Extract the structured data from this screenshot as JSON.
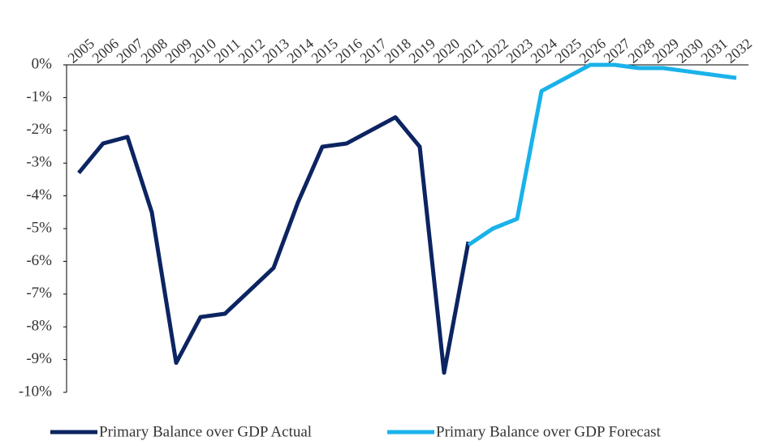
{
  "chart_data": {
    "type": "line",
    "categories": [
      "2005",
      "2006",
      "2007",
      "2008",
      "2009",
      "2010",
      "2011",
      "2012",
      "2013",
      "2014",
      "2015",
      "2016",
      "2017",
      "2018",
      "2019",
      "2020",
      "2021",
      "2022",
      "2023",
      "2024",
      "2025",
      "2026",
      "2027",
      "2028",
      "2029",
      "2030",
      "2031",
      "2032"
    ],
    "series": [
      {
        "name": "Primary Balance over GDP Actual",
        "color": "#0c2461",
        "values": [
          -3.3,
          -2.4,
          -2.2,
          -4.5,
          -9.1,
          -7.7,
          -7.6,
          -6.9,
          -6.2,
          -4.2,
          -2.5,
          -2.4,
          -2.0,
          -1.6,
          -2.5,
          -9.4,
          -5.4,
          null,
          null,
          null,
          null,
          null,
          null,
          null,
          null,
          null,
          null,
          null
        ]
      },
      {
        "name": "Primary Balance over GDP Forecast",
        "color": "#1ab2ea",
        "values": [
          null,
          null,
          null,
          null,
          null,
          null,
          null,
          null,
          null,
          null,
          null,
          null,
          null,
          null,
          null,
          null,
          -5.5,
          -5.0,
          -4.7,
          -0.8,
          -0.4,
          0.0,
          0.0,
          -0.1,
          -0.1,
          -0.2,
          -0.3,
          -0.4
        ]
      }
    ],
    "ylim": [
      -10,
      0
    ],
    "yticks": [
      {
        "value": 0,
        "label": "0%"
      },
      {
        "value": -1,
        "label": "-1%"
      },
      {
        "value": -2,
        "label": "-2%"
      },
      {
        "value": -3,
        "label": "-3%"
      },
      {
        "value": -4,
        "label": "-4%"
      },
      {
        "value": -5,
        "label": "-5%"
      },
      {
        "value": -6,
        "label": "-6%"
      },
      {
        "value": -7,
        "label": "-7%"
      },
      {
        "value": -8,
        "label": "-8%"
      },
      {
        "value": -9,
        "label": "-9%"
      },
      {
        "value": -10,
        "label": "-10%"
      }
    ],
    "grid": false,
    "x_axis_position": "top",
    "legend": "bottom"
  }
}
